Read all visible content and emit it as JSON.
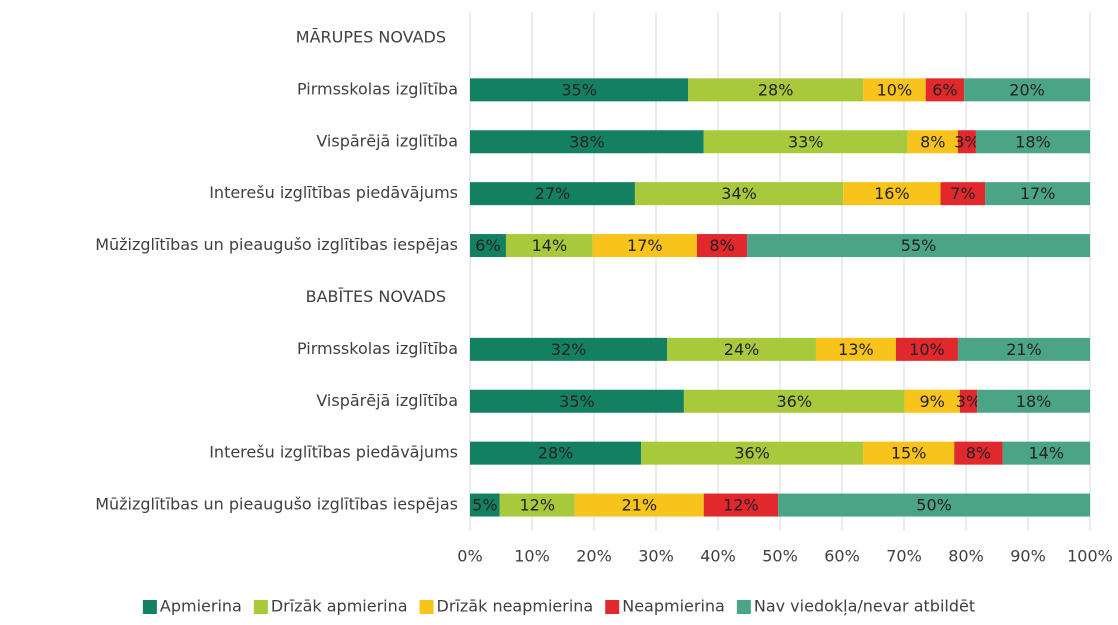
{
  "chart_data": {
    "type": "stacked-bar-horizontal",
    "categories": [
      "MĀRUPES NOVADS",
      "Pirmsskolas izglītība",
      "Vispārējā izglītība",
      "Interešu izglītības piedāvājums",
      "Mūžizglītības un pieaugušo izglītības iespējas",
      "BABĪTES NOVADS",
      "Pirmsskolas izglītība",
      "Vispārējā izglītība",
      "Interešu izglītības piedāvājums",
      "Mūžizglītības un pieaugušo izglītības iespējas"
    ],
    "series": [
      {
        "name": "Apmierina",
        "color": "#138061",
        "values": [
          null,
          35.2,
          37.7,
          26.6,
          5.8,
          null,
          31.8,
          34.5,
          27.6,
          4.8
        ],
        "value_labels": [
          null,
          "35%",
          "38%",
          "27%",
          "6%",
          null,
          "32%",
          "35%",
          "28%",
          "5%"
        ]
      },
      {
        "name": "Drīzāk apmierina",
        "color": "#a9c93d",
        "values": [
          null,
          28.2,
          32.9,
          33.6,
          14.0,
          null,
          24.0,
          35.6,
          35.8,
          12.1
        ],
        "value_labels": [
          null,
          "28%",
          "33%",
          "34%",
          "14%",
          null,
          "24%",
          "36%",
          "36%",
          "12%"
        ]
      },
      {
        "name": "Drīzāk neapmierina",
        "color": "#f8c31b",
        "values": [
          null,
          10.1,
          8.1,
          15.7,
          16.8,
          null,
          12.9,
          8.9,
          14.7,
          20.8
        ],
        "value_labels": [
          null,
          "10%",
          "8%",
          "16%",
          "17%",
          null,
          "13%",
          "9%",
          "15%",
          "21%"
        ]
      },
      {
        "name": "Neapmierina",
        "color": "#e1282d",
        "values": [
          null,
          6.2,
          2.9,
          7.2,
          8.1,
          null,
          10.0,
          2.8,
          7.8,
          12.0
        ],
        "value_labels": [
          null,
          "6%",
          "3%",
          "7%",
          "8%",
          null,
          "10%",
          "3%",
          "8%",
          "12%"
        ]
      },
      {
        "name": "Nav viedokļa/nevar atbildēt",
        "color": "#4ba485",
        "values": [
          null,
          20.3,
          18.4,
          16.9,
          55.3,
          null,
          21.3,
          18.2,
          14.1,
          50.3
        ],
        "value_labels": [
          null,
          "20%",
          "18%",
          "17%",
          "55%",
          null,
          "21%",
          "18%",
          "14%",
          "50%"
        ]
      }
    ],
    "xlim": [
      0,
      100
    ],
    "xticks": [
      {
        "value": 0,
        "label": "0%"
      },
      {
        "value": 10,
        "label": "10%"
      },
      {
        "value": 20,
        "label": "20%"
      },
      {
        "value": 30,
        "label": "30%"
      },
      {
        "value": 40,
        "label": "40%"
      },
      {
        "value": 50,
        "label": "50%"
      },
      {
        "value": 60,
        "label": "60%"
      },
      {
        "value": 70,
        "label": "70%"
      },
      {
        "value": 80,
        "label": "80%"
      },
      {
        "value": 90,
        "label": "90%"
      },
      {
        "value": 100,
        "label": "100%"
      }
    ],
    "grid": true,
    "legend": "bottom"
  }
}
